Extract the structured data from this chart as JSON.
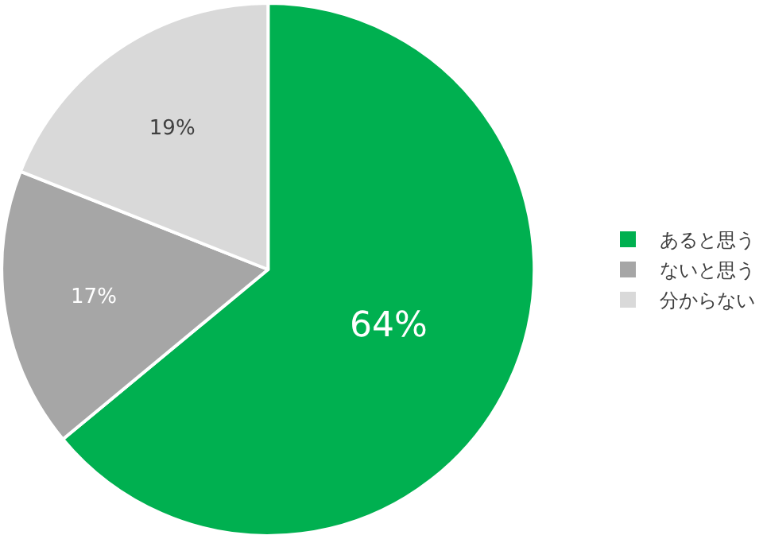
{
  "chart_data": {
    "type": "pie",
    "categories": [
      "あると思う",
      "ないと思う",
      "分からない"
    ],
    "values": [
      64,
      17,
      19
    ],
    "colors": [
      "#00b050",
      "#a6a6a6",
      "#d9d9d9"
    ],
    "value_labels": [
      "64%",
      "17%",
      "19%"
    ],
    "legend": "right"
  }
}
